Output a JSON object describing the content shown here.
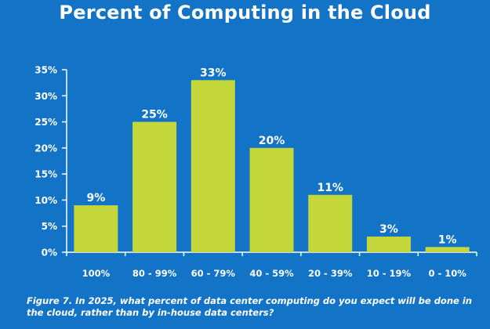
{
  "chart_data": {
    "type": "bar",
    "title": "Percent of Computing in the Cloud",
    "categories": [
      "100%",
      "80 - 99%",
      "60 - 79%",
      "40 - 59%",
      "20 - 39%",
      "10 - 19%",
      "0 - 10%"
    ],
    "values": [
      9,
      25,
      33,
      20,
      11,
      3,
      1
    ],
    "value_labels": [
      "9%",
      "25%",
      "33%",
      "20%",
      "11%",
      "3%",
      "1%"
    ],
    "ylim": [
      0,
      35
    ],
    "yticks": [
      "0%",
      "5%",
      "10%",
      "15%",
      "20%",
      "25%",
      "30%",
      "35%"
    ],
    "xlabel": "",
    "ylabel": "",
    "grid": false,
    "legend": "none",
    "caption": "Figure 7. In 2025, what percent of data center computing do you expect will be done in the cloud, rather than by in-house data centers?",
    "colors": {
      "background": "#1273c7",
      "bar": "#c3d73a",
      "axis": "#ffffff",
      "text": "#ffffff"
    }
  }
}
